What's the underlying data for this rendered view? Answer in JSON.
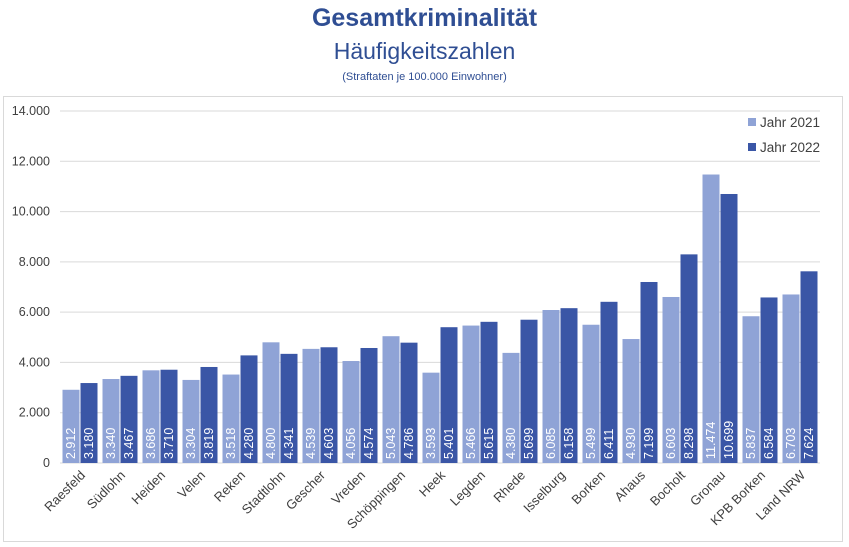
{
  "title": "Gesamtkriminalität",
  "subtitle": "Häufigkeitszahlen",
  "note": "(Straftaten je 100.000 Einwohner)",
  "colors": {
    "series_2021": "#8FA3D6",
    "series_2022": "#3A56A6",
    "grid": "#d9d9d9",
    "label": "#ffffff",
    "axis_text": "#404040"
  },
  "chart_data": {
    "type": "bar",
    "title": "Gesamtkriminalität",
    "subtitle": "Häufigkeitszahlen",
    "ylim": [
      0,
      14000
    ],
    "yticks": [
      0,
      2000,
      4000,
      6000,
      8000,
      10000,
      12000,
      14000
    ],
    "ytick_labels": [
      "0",
      "2.000",
      "4.000",
      "6.000",
      "8.000",
      "10.000",
      "12.000",
      "14.000"
    ],
    "grid": true,
    "legend_position": "top-right",
    "categories": [
      "Raesfeld",
      "Südlohn",
      "Heiden",
      "Velen",
      "Reken",
      "Stadtlohn",
      "Gescher",
      "Vreden",
      "Schöppingen",
      "Heek",
      "Legden",
      "Rhede",
      "Isselburg",
      "Borken",
      "Ahaus",
      "Bocholt",
      "Gronau",
      "KPB Borken",
      "Land NRW"
    ],
    "series": [
      {
        "name": "Jahr 2021",
        "values": [
          2912,
          3340,
          3686,
          3304,
          3518,
          4800,
          4539,
          4056,
          5043,
          3593,
          5466,
          4380,
          6085,
          5499,
          4930,
          6603,
          11474,
          5837,
          6703
        ],
        "labels": [
          "2.912",
          "3.340",
          "3.686",
          "3.304",
          "3.518",
          "4.800",
          "4.539",
          "4.056",
          "5.043",
          "3.593",
          "5.466",
          "4.380",
          "6.085",
          "5.499",
          "4.930",
          "6.603",
          "11.474",
          "5.837",
          "6.703"
        ]
      },
      {
        "name": "Jahr 2022",
        "values": [
          3180,
          3467,
          3710,
          3819,
          4280,
          4341,
          4603,
          4574,
          4786,
          5401,
          5615,
          5699,
          6158,
          6411,
          7199,
          8298,
          10699,
          6584,
          7624
        ],
        "labels": [
          "3.180",
          "3.467",
          "3.710",
          "3.819",
          "4.280",
          "4.341",
          "4.603",
          "4.574",
          "4.786",
          "5.401",
          "5.615",
          "5.699",
          "6.158",
          "6.411",
          "7.199",
          "8.298",
          "10.699",
          "6.584",
          "7.624"
        ]
      }
    ]
  }
}
